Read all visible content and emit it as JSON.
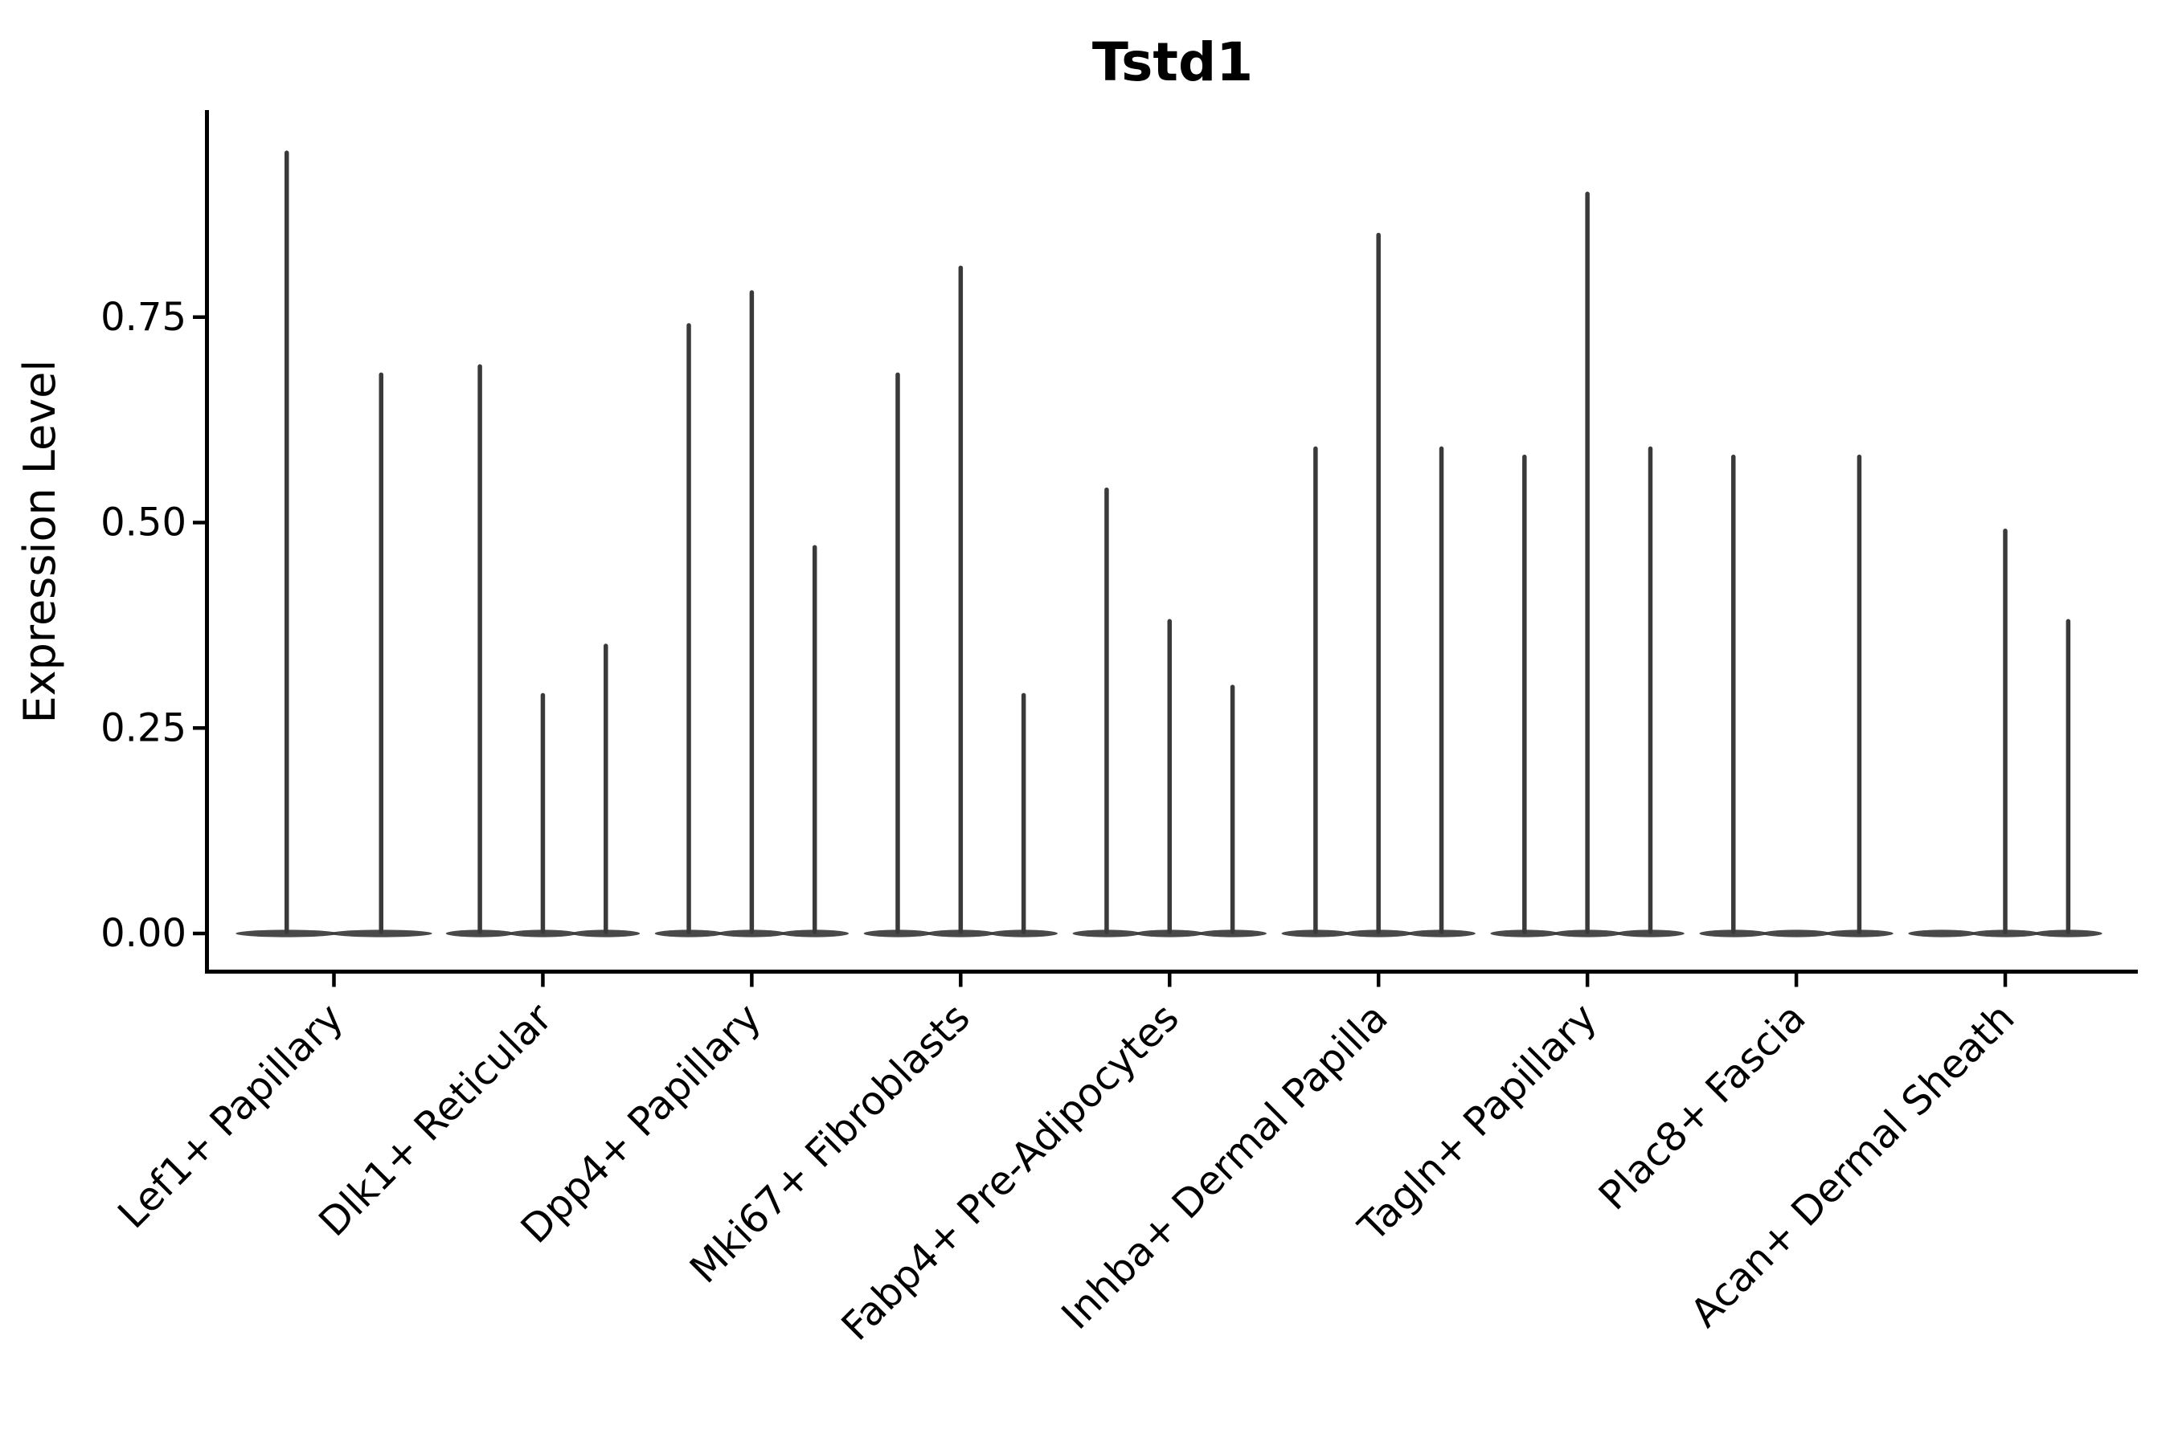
{
  "title": "Tstd1",
  "chart_data": {
    "type": "violin",
    "title": "Tstd1",
    "xlabel": "",
    "ylabel": "Expression Level",
    "ylim": [
      0,
      1.0
    ],
    "yticks": [
      0.0,
      0.25,
      0.5,
      0.75
    ],
    "ytick_labels": [
      "0.00",
      "0.25",
      "0.50",
      "0.75"
    ],
    "grid": "off",
    "legend": "none",
    "description": "Single-cell expression violin plot; each violin is a flat lens of zeros at y=0 with a thin spike rising to the maximum expression value. Categories with 3 sub-violins where max=0 show only the flat base (no spike).",
    "categories": [
      "Lef1+ Papillary",
      "Dlk1+ Reticular",
      "Dpp4+ Papillary",
      "Mki67+ Fibroblasts",
      "Fabp4+ Pre-Adipocytes",
      "Inhba+ Dermal Papilla",
      "Tagln+ Papillary",
      "Plac8+ Fascia",
      "Acan+ Dermal Sheath"
    ],
    "groups": [
      {
        "category": "Lef1+ Papillary",
        "violin_max_values": [
          0.95,
          0.68
        ]
      },
      {
        "category": "Dlk1+ Reticular",
        "violin_max_values": [
          0.69,
          0.29,
          0.35
        ]
      },
      {
        "category": "Dpp4+ Papillary",
        "violin_max_values": [
          0.74,
          0.78,
          0.47
        ]
      },
      {
        "category": "Mki67+ Fibroblasts",
        "violin_max_values": [
          0.68,
          0.81,
          0.29
        ]
      },
      {
        "category": "Fabp4+ Pre-Adipocytes",
        "violin_max_values": [
          0.54,
          0.38,
          0.3
        ]
      },
      {
        "category": "Inhba+ Dermal Papilla",
        "violin_max_values": [
          0.59,
          0.85,
          0.59
        ]
      },
      {
        "category": "Tagln+ Papillary",
        "violin_max_values": [
          0.58,
          0.9,
          0.59
        ]
      },
      {
        "category": "Plac8+ Fascia",
        "violin_max_values": [
          0.58,
          0.0,
          0.58
        ]
      },
      {
        "category": "Acan+ Dermal Sheath",
        "violin_max_values": [
          0.0,
          0.49,
          0.38
        ]
      }
    ],
    "style": {
      "violin_color": "#3a3a3a",
      "axis_color": "#000000",
      "background_color": "#ffffff"
    }
  }
}
